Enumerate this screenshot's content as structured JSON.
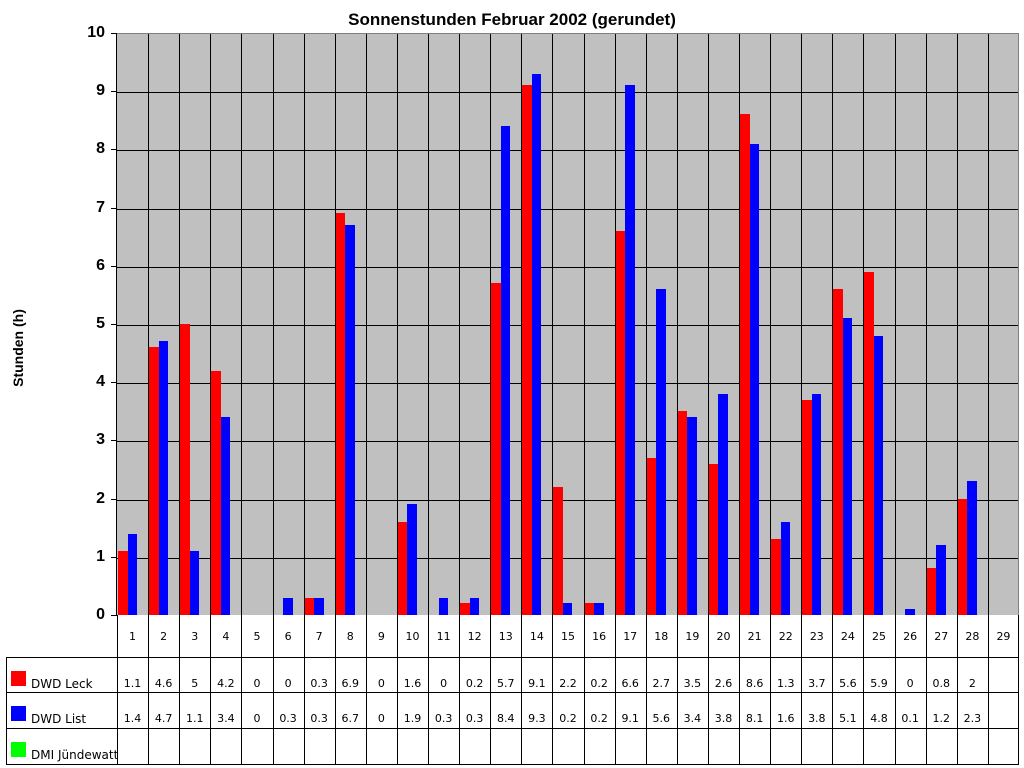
{
  "chart_data": {
    "type": "bar",
    "title": "Sonnenstunden Februar 2002 (gerundet)",
    "xlabel": "",
    "ylabel": "Stunden (h)",
    "ylim": [
      0,
      10
    ],
    "yticks": [
      "0",
      "1",
      "2",
      "3",
      "4",
      "5",
      "6",
      "7",
      "8",
      "9",
      "10"
    ],
    "grid": true,
    "legend_position": "data-table-left",
    "categories": [
      "1",
      "2",
      "3",
      "4",
      "5",
      "6",
      "7",
      "8",
      "9",
      "10",
      "11",
      "12",
      "13",
      "14",
      "15",
      "16",
      "17",
      "18",
      "19",
      "20",
      "21",
      "22",
      "23",
      "24",
      "25",
      "26",
      "27",
      "28",
      "29"
    ],
    "series": [
      {
        "name": "DWD Leck",
        "color": "#ff0000",
        "values": [
          1.1,
          4.6,
          5,
          4.2,
          0,
          0,
          0.3,
          6.9,
          0,
          1.6,
          0,
          0.2,
          5.7,
          9.1,
          2.2,
          0.2,
          6.6,
          2.7,
          3.5,
          2.6,
          8.6,
          1.3,
          3.7,
          5.6,
          5.9,
          0,
          0.8,
          2,
          null
        ]
      },
      {
        "name": "DWD List",
        "color": "#0000ff",
        "values": [
          1.4,
          4.7,
          1.1,
          3.4,
          0,
          0.3,
          0.3,
          6.7,
          0,
          1.9,
          0.3,
          0.3,
          8.4,
          9.3,
          0.2,
          0.2,
          9.1,
          5.6,
          3.4,
          3.8,
          8.1,
          1.6,
          3.8,
          5.1,
          4.8,
          0.1,
          1.2,
          2.3,
          null
        ]
      },
      {
        "name": "DMI Jündewatt",
        "color": "#00ff00",
        "values": [
          null,
          null,
          null,
          null,
          null,
          null,
          null,
          null,
          null,
          null,
          null,
          null,
          null,
          null,
          null,
          null,
          null,
          null,
          null,
          null,
          null,
          null,
          null,
          null,
          null,
          null,
          null,
          null,
          null
        ]
      }
    ],
    "table_display": {
      "DWD Leck": [
        "1.1",
        "4.6",
        "5",
        "4.2",
        "0",
        "0",
        "0.3",
        "6.9",
        "0",
        "1.6",
        "0",
        "0.2",
        "5.7",
        "9.1",
        "2.2",
        "0.2",
        "6.6",
        "2.7",
        "3.5",
        "2.6",
        "8.6",
        "1.3",
        "3.7",
        "5.6",
        "5.9",
        "0",
        "0.8",
        "2",
        ""
      ],
      "DWD List": [
        "1.4",
        "4.7",
        "1.1",
        "3.4",
        "0",
        "0.3",
        "0.3",
        "6.7",
        "0",
        "1.9",
        "0.3",
        "0.3",
        "8.4",
        "9.3",
        "0.2",
        "0.2",
        "9.1",
        "5.6",
        "3.4",
        "3.8",
        "8.1",
        "1.6",
        "3.8",
        "5.1",
        "4.8",
        "0.1",
        "1.2",
        "2.3",
        ""
      ],
      "DMI Jündewatt": [
        "",
        "",
        "",
        "",
        "",
        "",
        "",
        "",
        "",
        "",
        "",
        "",
        "",
        "",
        "",
        "",
        "",
        "",
        "",
        "",
        "",
        "",
        "",
        "",
        "",
        "",
        "",
        "",
        ""
      ]
    },
    "plot_background": "#c0c0c0"
  }
}
